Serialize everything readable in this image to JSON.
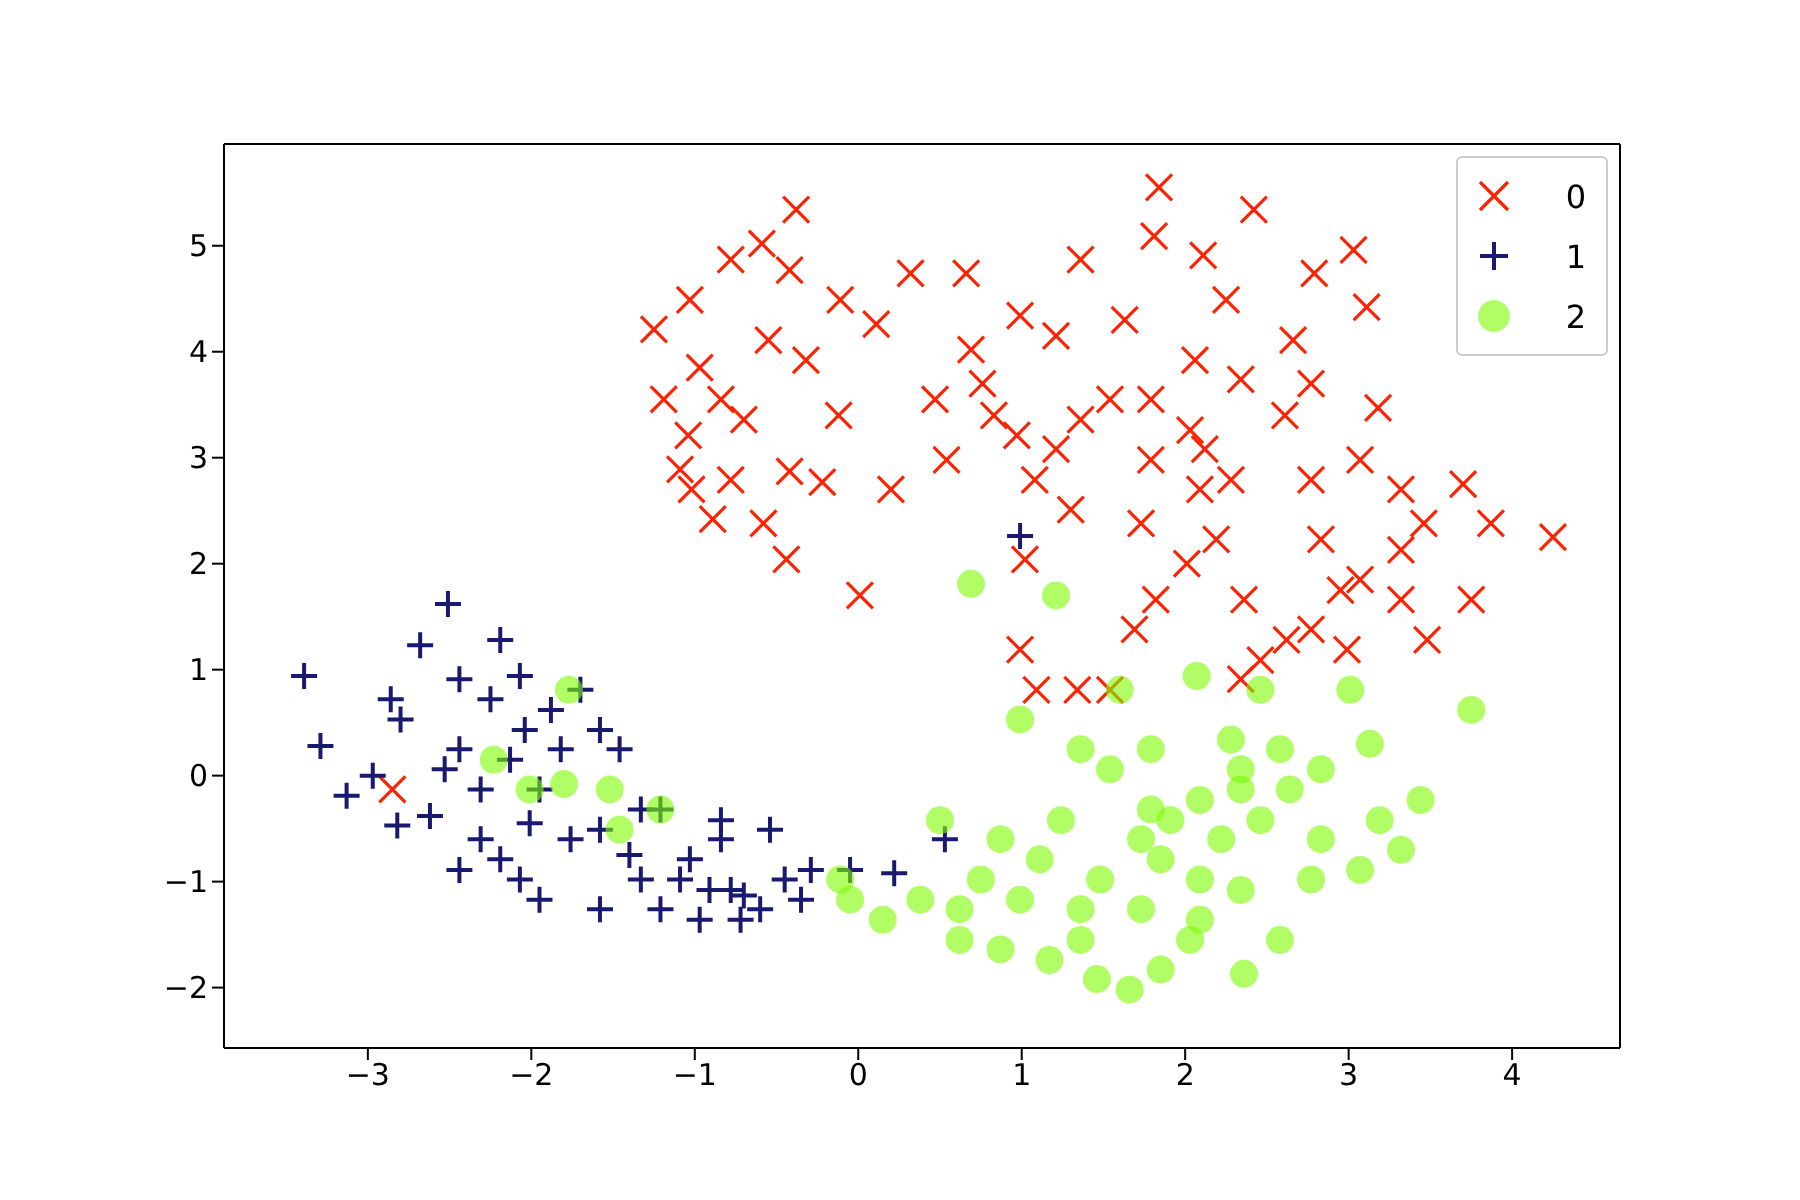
{
  "chart_data": {
    "type": "scatter",
    "xlim": [
      -3.88,
      4.66
    ],
    "ylim": [
      -2.57,
      5.96
    ],
    "xticks": [
      -3,
      -2,
      -1,
      0,
      1,
      2,
      3,
      4
    ],
    "yticks": [
      -2,
      -1,
      0,
      1,
      2,
      3,
      4,
      5
    ],
    "legend": "top right",
    "series": [
      {
        "name": "0",
        "color": "#ff2200",
        "marker": "cross",
        "x": [
          4.25,
          3.87,
          3.7,
          3.48,
          3.75,
          3.18,
          3.11,
          2.79,
          3.03,
          2.77,
          2.42,
          1.84,
          1.81,
          2.11,
          2.61,
          2.34,
          2.06,
          2.03,
          1.79,
          1.63,
          1.36,
          1.21,
          0.99,
          0.66,
          0.76,
          0.47,
          0.32,
          0.11,
          -0.12,
          -0.11,
          -0.38,
          -0.42,
          -0.59,
          -0.55,
          -0.7,
          -0.97,
          -1.02,
          -0.78,
          -1.03,
          -1.25,
          -1.19,
          -1.04,
          -0.89,
          -0.58,
          -0.44,
          -0.22,
          0.01,
          0.2,
          0.54,
          0.83,
          0.97,
          1.08,
          1.21,
          1.3,
          1.02,
          0.99,
          1.09,
          1.34,
          1.54,
          1.69,
          1.82,
          2.01,
          2.19,
          2.36,
          2.46,
          2.62,
          2.77,
          2.95,
          3.07,
          3.32,
          3.46,
          2.83,
          2.77,
          3.07,
          3.32,
          2.28,
          2.09,
          1.73,
          1.79,
          1.54,
          2.12,
          2.25,
          2.66,
          2.34,
          2.99,
          3.32,
          -1.09,
          -0.78,
          -0.84,
          -0.32,
          -0.42,
          -2.85,
          0.69,
          1.36
        ],
        "values": [
          2.25,
          2.38,
          2.75,
          1.28,
          1.66,
          3.47,
          4.42,
          4.74,
          4.96,
          3.7,
          5.34,
          5.55,
          5.09,
          4.91,
          3.4,
          3.74,
          3.92,
          3.26,
          3.55,
          4.3,
          4.87,
          4.15,
          4.34,
          4.74,
          3.7,
          3.55,
          4.74,
          4.26,
          3.4,
          4.49,
          5.34,
          4.77,
          5.02,
          4.11,
          3.36,
          3.85,
          2.7,
          4.87,
          4.49,
          4.21,
          3.55,
          3.21,
          2.42,
          2.38,
          2.04,
          2.77,
          1.7,
          2.7,
          2.98,
          3.4,
          3.21,
          2.79,
          3.08,
          2.51,
          2.04,
          1.19,
          0.81,
          0.81,
          0.81,
          1.38,
          1.66,
          2.0,
          2.23,
          1.66,
          1.09,
          1.28,
          1.38,
          1.75,
          1.85,
          2.13,
          2.38,
          2.23,
          2.79,
          2.98,
          2.7,
          2.79,
          2.7,
          2.38,
          2.98,
          3.55,
          3.08,
          4.49,
          4.11,
          0.91,
          1.19,
          1.66,
          2.89,
          2.79,
          3.55,
          3.92,
          2.87,
          -0.13,
          4.02,
          3.36
        ]
      },
      {
        "name": "1",
        "color": "#191970",
        "marker": "plus",
        "x": [
          -3.39,
          -3.29,
          -3.13,
          -2.97,
          -2.51,
          -2.68,
          -2.8,
          -2.82,
          -2.44,
          -2.31,
          -2.07,
          -1.88,
          -1.7,
          -1.58,
          -2.25,
          -2.44,
          -2.13,
          -1.95,
          -2.01,
          -1.76,
          -1.58,
          -1.4,
          -1.21,
          -1.33,
          -1.09,
          -0.91,
          -0.84,
          -0.72,
          -0.6,
          -0.45,
          -0.35,
          -0.29,
          -0.97,
          -1.21,
          -1.58,
          -1.95,
          -2.07,
          -2.19,
          -2.62,
          -2.53,
          -2.31,
          -2.04,
          -1.82,
          -0.05,
          0.22,
          0.53,
          0.99,
          -0.54,
          -0.84,
          -1.33,
          -2.86,
          -2.44,
          -2.19,
          -1.46,
          -1.03,
          -0.78,
          -0.7
        ],
        "values": [
          0.94,
          0.28,
          -0.19,
          0.0,
          1.62,
          1.23,
          0.53,
          -0.47,
          -0.89,
          -0.6,
          0.94,
          0.62,
          0.81,
          0.43,
          0.72,
          0.25,
          0.15,
          -0.13,
          -0.45,
          -0.6,
          -0.51,
          -0.75,
          -0.32,
          -0.98,
          -0.98,
          -1.08,
          -0.6,
          -1.36,
          -1.26,
          -0.98,
          -1.17,
          -0.89,
          -1.36,
          -1.26,
          -1.26,
          -1.17,
          -0.98,
          -0.79,
          -0.38,
          0.06,
          -0.13,
          0.43,
          0.25,
          -0.89,
          -0.92,
          -0.6,
          2.26,
          -0.51,
          -0.42,
          -0.32,
          0.72,
          0.91,
          1.28,
          0.25,
          -0.79,
          -1.08,
          -1.13
        ]
      },
      {
        "name": "2",
        "color": "#7cfc00",
        "marker": "circle",
        "x": [
          3.75,
          0.69,
          1.21,
          0.99,
          1.6,
          2.07,
          2.46,
          3.01,
          -1.77,
          -2.23,
          -2.01,
          -1.8,
          -1.52,
          -1.21,
          -1.46,
          -0.11,
          -0.05,
          0.15,
          0.5,
          0.62,
          0.87,
          1.17,
          1.46,
          1.66,
          1.85,
          2.36,
          2.58,
          2.09,
          1.73,
          1.36,
          0.99,
          0.75,
          1.11,
          1.48,
          1.85,
          2.22,
          2.46,
          2.83,
          3.19,
          3.44,
          3.32,
          3.07,
          2.77,
          2.34,
          2.09,
          1.79,
          1.54,
          1.36,
          1.79,
          2.28,
          2.58,
          2.83,
          3.13,
          2.34,
          2.09,
          1.24,
          0.87,
          0.38,
          2.34,
          2.64,
          1.91,
          1.73,
          1.36,
          2.03,
          0.62
        ],
        "values": [
          0.62,
          1.81,
          1.7,
          0.53,
          0.81,
          0.94,
          0.81,
          0.81,
          0.81,
          0.15,
          -0.13,
          -0.08,
          -0.13,
          -0.32,
          -0.51,
          -0.98,
          -1.17,
          -1.36,
          -0.42,
          -1.55,
          -1.64,
          -1.74,
          -1.92,
          -2.02,
          -1.83,
          -1.87,
          -1.55,
          -1.36,
          -1.26,
          -1.26,
          -1.17,
          -0.98,
          -0.79,
          -0.98,
          -0.79,
          -0.6,
          -0.42,
          -0.6,
          -0.42,
          -0.23,
          -0.7,
          -0.89,
          -0.98,
          -1.08,
          -0.98,
          -0.32,
          0.06,
          0.25,
          0.25,
          0.34,
          0.25,
          0.06,
          0.3,
          0.06,
          -0.23,
          -0.42,
          -0.6,
          -1.17,
          -0.13,
          -0.13,
          -0.42,
          -0.6,
          -1.55,
          -1.55,
          -1.26
        ]
      }
    ]
  }
}
